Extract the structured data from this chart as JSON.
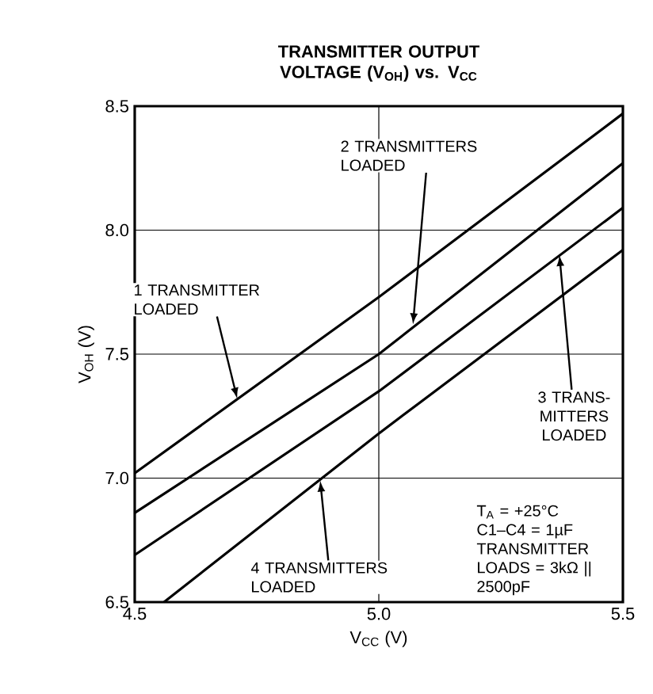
{
  "chart_data": {
    "type": "line",
    "title": "TRANSMITTER OUTPUT VOLTAGE (V$_{OH}$) vs. V$_{CC}$",
    "xlabel": "V$_{CC}$ (V)",
    "ylabel": "V$_{OH}$ (V)",
    "xlim": [
      4.5,
      5.5
    ],
    "ylim": [
      6.5,
      8.5
    ],
    "xticks": [
      4.5,
      {
        "value": 5.0,
        "label": "5.0"
      },
      5.5
    ],
    "yticks": [
      6.5,
      {
        "value": 7.0,
        "label": "7.0"
      },
      7.5,
      {
        "value": 8.0,
        "label": "8.0"
      },
      8.5
    ],
    "grid": true,
    "marker": "none",
    "line_style": "solid",
    "series": [
      {
        "color": "#000000",
        "x": [
          4.5,
          5.0,
          5.5
        ],
        "values": [
          7.02,
          7.73,
          8.47
        ]
      },
      {
        "color": "#000000",
        "x": [
          4.5,
          5.0,
          5.5
        ],
        "values": [
          6.86,
          7.5,
          8.27
        ]
      },
      {
        "color": "#000000",
        "x": [
          4.5,
          5.0,
          5.5
        ],
        "values": [
          6.69,
          7.35,
          8.09
        ]
      },
      {
        "color": "#000000",
        "x": [
          4.56,
          5.0,
          5.5
        ],
        "values": [
          6.5,
          7.18,
          7.92
        ]
      }
    ],
    "annotations": [
      {
        "text": "1 TRANSMITTER LOADED",
        "x": 4.71,
        "y": 7.32
      },
      {
        "text": "2 TRANSMITTERS LOADED",
        "x": 5.07,
        "y": 7.62
      },
      {
        "text": "3 TRANS-MITTERS LOADED",
        "x": 5.37,
        "y": 7.9
      },
      {
        "text": "4 TRANSMITTERS LOADED",
        "x": 4.88,
        "y": 6.99
      },
      "T$_{A}$ = +25°C",
      "C1–C4 = 1µF",
      "TRANSMITTER LOADS = 3kΩ || 2500pF"
    ]
  }
}
